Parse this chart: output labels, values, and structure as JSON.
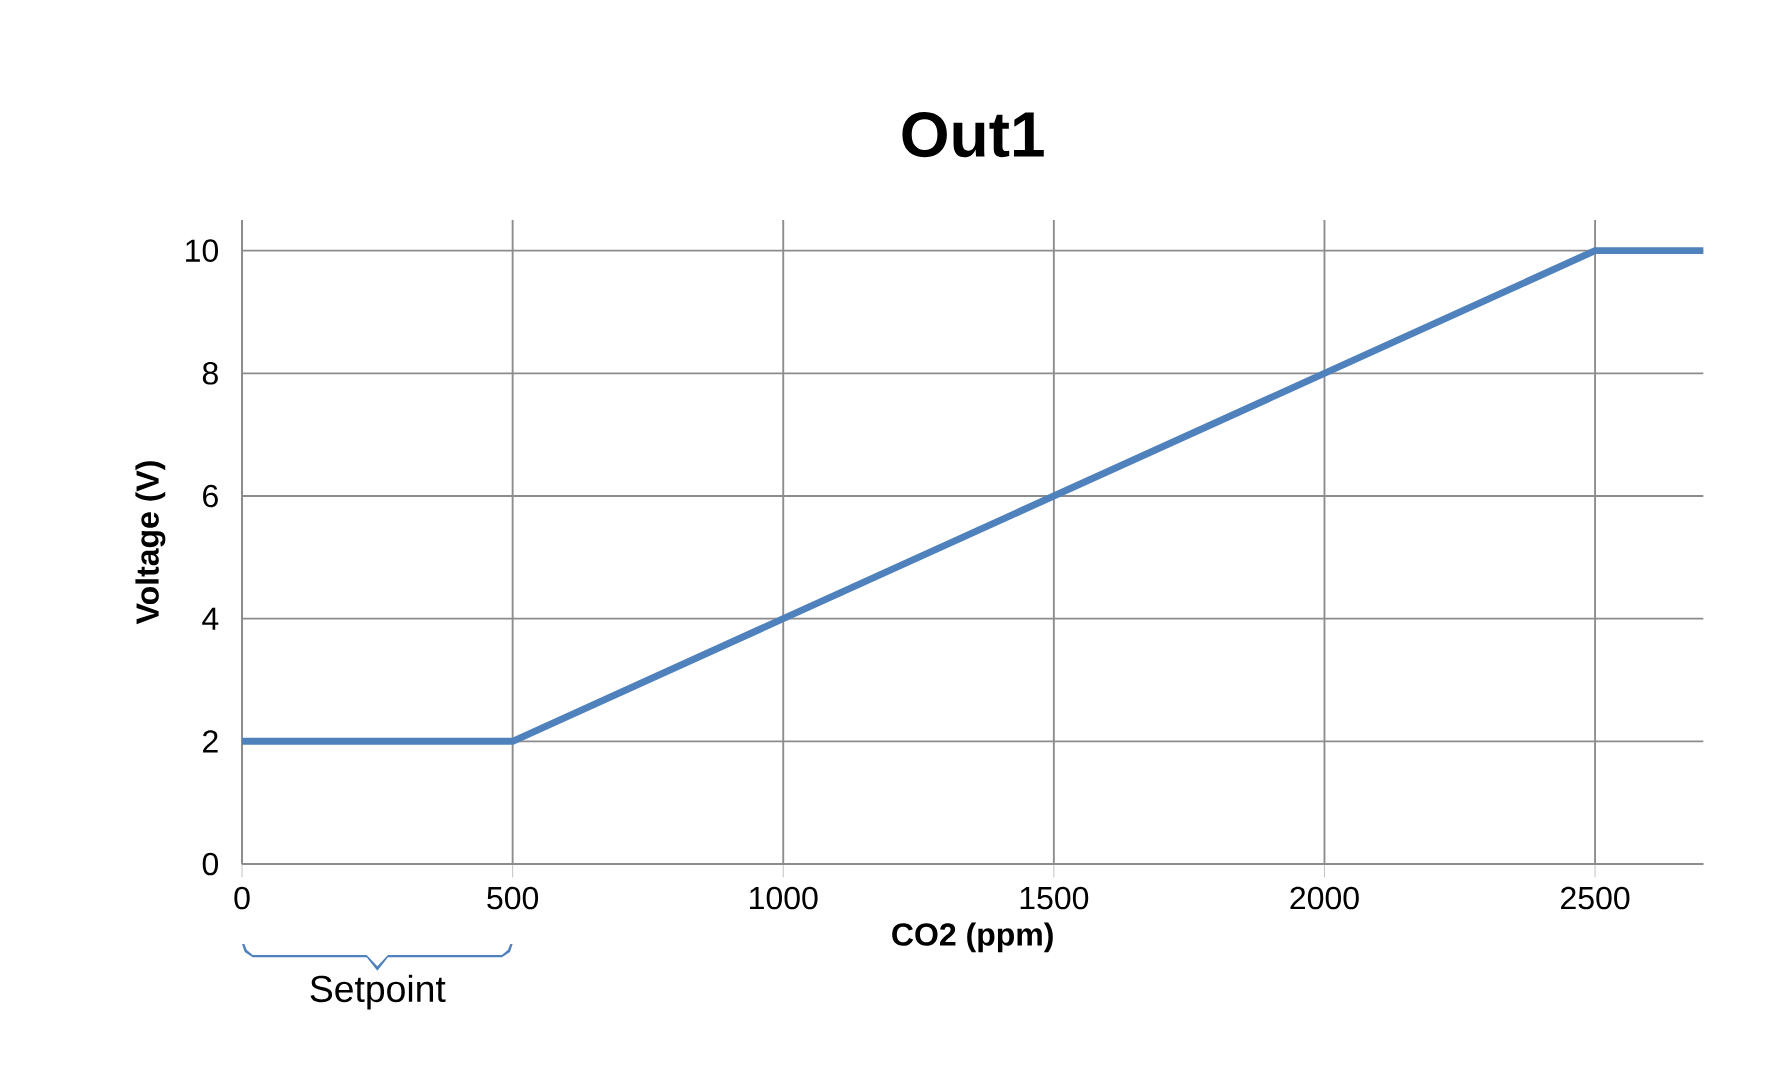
{
  "chart_data": {
    "type": "line",
    "title": "Out1",
    "xlabel": "CO2 (ppm)",
    "ylabel": "Voltage (V)",
    "x": [
      0,
      500,
      2500,
      2700
    ],
    "series": [
      {
        "color": "#4f81bd",
        "values": [
          2,
          2,
          10,
          10
        ]
      }
    ],
    "xlim": [
      0,
      2700
    ],
    "ylim": [
      0,
      10.5
    ],
    "xticks": [
      0,
      500,
      1000,
      1500,
      2000,
      2500
    ],
    "yticks": [
      0,
      2,
      4,
      6,
      8,
      10
    ],
    "grid": true,
    "marker": "none",
    "line_style": "solid",
    "annotations": [
      "Setpoint"
    ]
  }
}
